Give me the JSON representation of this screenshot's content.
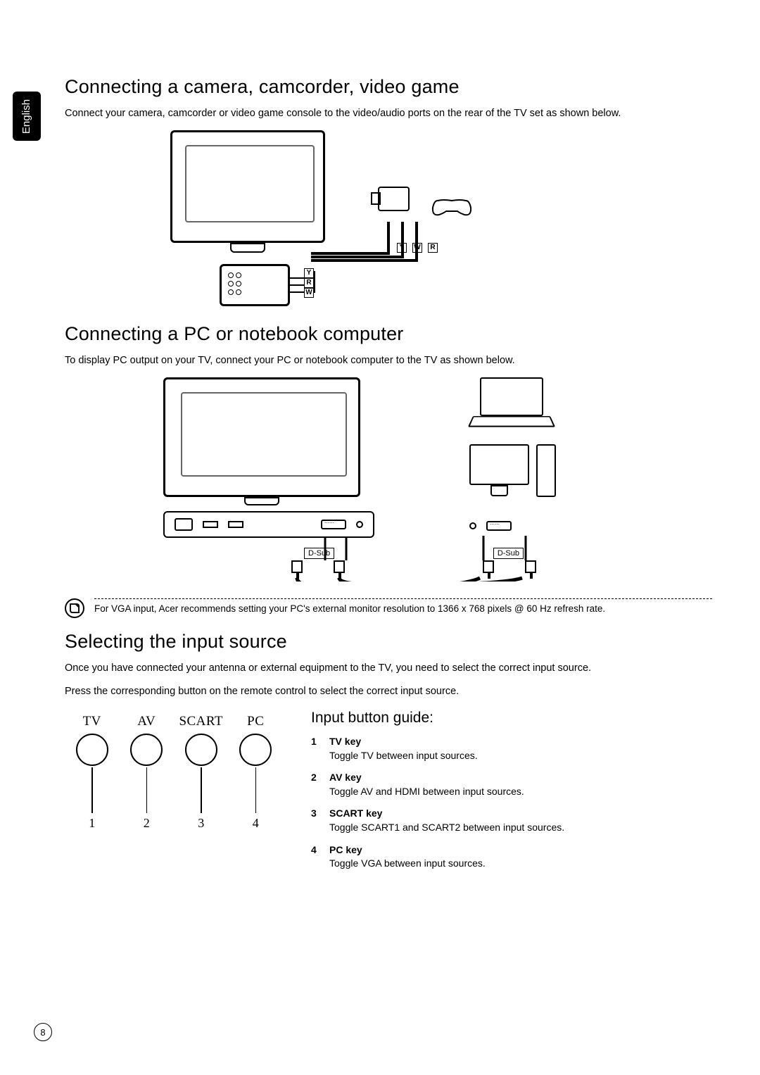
{
  "language_tab": "English",
  "page_number": "8",
  "section1": {
    "heading": "Connecting a camera, camcorder, video game",
    "text": "Connect your camera, camcorder or video game console to the video/audio ports on the rear of the TV set as shown below.",
    "diagram": {
      "type": "diagram",
      "av_labels": [
        "Y",
        "W",
        "R"
      ],
      "port_labels": [
        "Y",
        "R",
        "W"
      ]
    }
  },
  "section2": {
    "heading": "Connecting a PC or notebook computer",
    "text": "To display PC output on your TV, connect your PC or notebook computer to the TV as shown below.",
    "diagram": {
      "type": "diagram",
      "dsub_label": "D-Sub"
    }
  },
  "note": {
    "text": "For VGA input, Acer recommends setting your PC's external monitor resolution to 1366 x 768 pixels @ 60 Hz refresh rate."
  },
  "section3": {
    "heading": "Selecting the input source",
    "text1": "Once you have connected your antenna or external equipment to the TV, you need to select the correct input source.",
    "text2": "Press the corresponding button on the remote control to select the correct input source.",
    "buttons": [
      {
        "label": "TV",
        "num": "1"
      },
      {
        "label": "AV",
        "num": "2"
      },
      {
        "label": "SCART",
        "num": "3"
      },
      {
        "label": "PC",
        "num": "4"
      }
    ],
    "guide_heading": "Input button guide:",
    "guide": [
      {
        "num": "1",
        "title": "TV key",
        "desc": "Toggle TV between input sources."
      },
      {
        "num": "2",
        "title": "AV key",
        "desc": "Toggle AV and HDMI between input sources."
      },
      {
        "num": "3",
        "title": "SCART key",
        "desc": "Toggle SCART1 and SCART2 between input sources."
      },
      {
        "num": "4",
        "title": "PC key",
        "desc": "Toggle VGA between input sources."
      }
    ]
  },
  "style": {
    "text_color": "#000000",
    "background_color": "#ffffff",
    "tab_bg": "#000000",
    "tab_fg": "#ffffff",
    "heading_fontsize_pt": 20,
    "subheading_fontsize_pt": 16,
    "body_fontsize_pt": 11,
    "guide_fontsize_pt": 10.5,
    "font_family": "sans-serif",
    "line_color": "#000000",
    "dash_color": "#000000"
  }
}
